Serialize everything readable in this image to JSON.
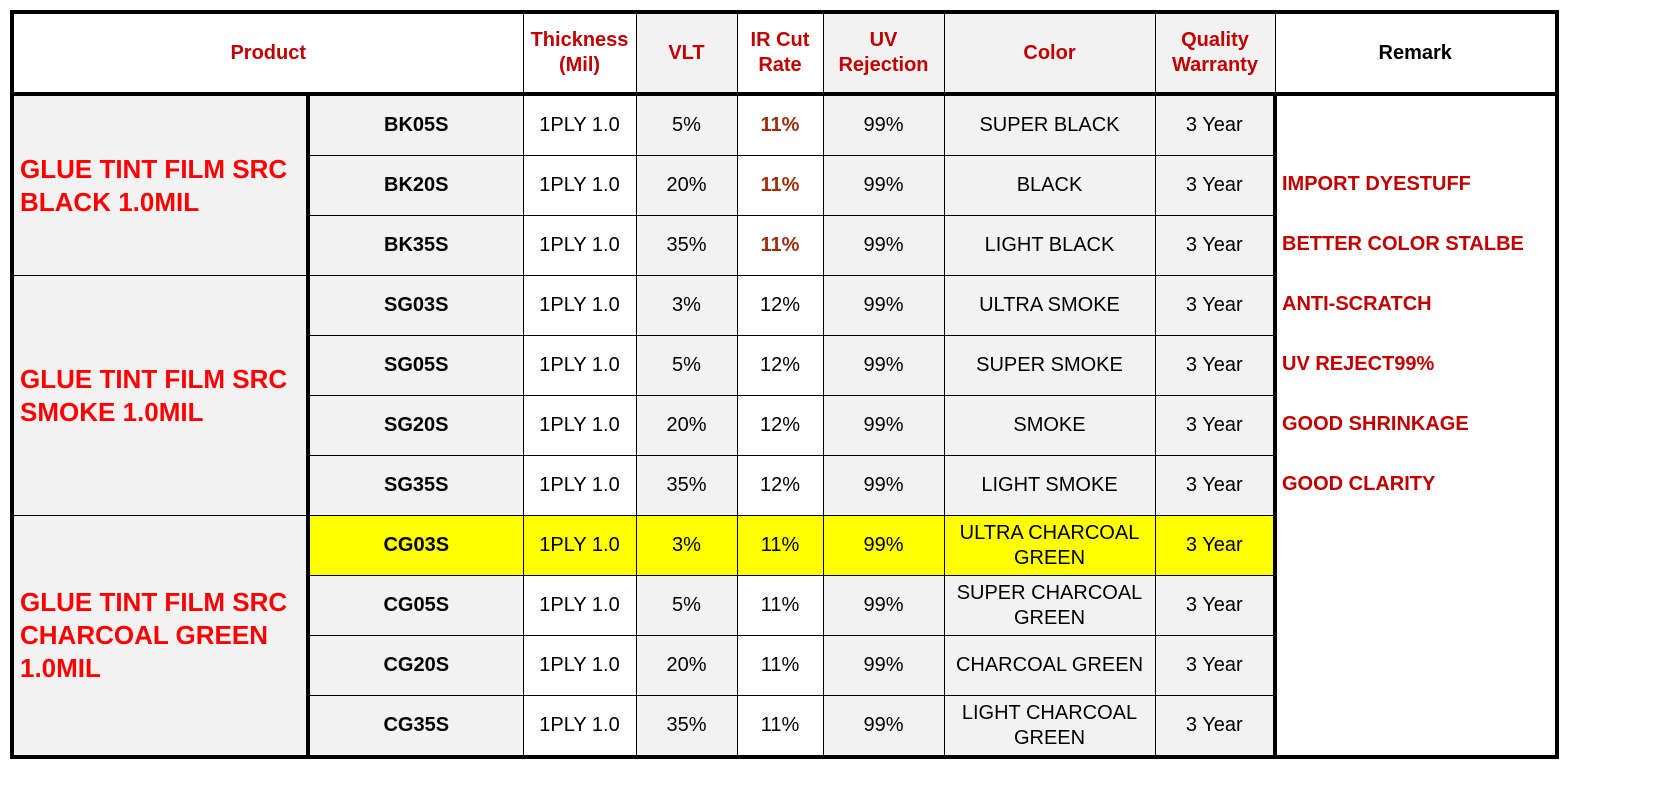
{
  "headers": {
    "product": "Product",
    "thickness": "Thickness\n(Mil)",
    "vlt": "VLT",
    "ir": "IR Cut\nRate",
    "uv": "UV\nRejection",
    "color": "Color",
    "warranty": "Quality\nWarranty",
    "remark": "Remark"
  },
  "groups": [
    {
      "name": "GLUE TINT FILM SRC BLACK 1.0MIL"
    },
    {
      "name": "GLUE TINT FILM SRC SMOKE 1.0MIL"
    },
    {
      "name": "GLUE TINT FILM SRC CHARCOAL GREEN 1.0MIL"
    }
  ],
  "rows": [
    {
      "code": "BK05S",
      "thickness": "1PLY 1.0",
      "vlt": "5%",
      "ir": "11%",
      "uv": "99%",
      "color": "SUPER BLACK",
      "warranty": "3 Year"
    },
    {
      "code": "BK20S",
      "thickness": "1PLY 1.0",
      "vlt": "20%",
      "ir": "11%",
      "uv": "99%",
      "color": "BLACK",
      "warranty": "3 Year"
    },
    {
      "code": "BK35S",
      "thickness": "1PLY 1.0",
      "vlt": "35%",
      "ir": "11%",
      "uv": "99%",
      "color": "LIGHT BLACK",
      "warranty": "3 Year"
    },
    {
      "code": "SG03S",
      "thickness": "1PLY 1.0",
      "vlt": "3%",
      "ir": "12%",
      "uv": "99%",
      "color": "ULTRA SMOKE",
      "warranty": "3 Year"
    },
    {
      "code": "SG05S",
      "thickness": "1PLY 1.0",
      "vlt": "5%",
      "ir": "12%",
      "uv": "99%",
      "color": "SUPER SMOKE",
      "warranty": "3 Year"
    },
    {
      "code": "SG20S",
      "thickness": "1PLY 1.0",
      "vlt": "20%",
      "ir": "12%",
      "uv": "99%",
      "color": "SMOKE",
      "warranty": "3 Year"
    },
    {
      "code": "SG35S",
      "thickness": "1PLY 1.0",
      "vlt": "35%",
      "ir": "12%",
      "uv": "99%",
      "color": "LIGHT SMOKE",
      "warranty": "3 Year"
    },
    {
      "code": "CG03S",
      "thickness": "1PLY 1.0",
      "vlt": "3%",
      "ir": "11%",
      "uv": "99%",
      "color": "ULTRA CHARCOAL GREEN",
      "warranty": "3 Year"
    },
    {
      "code": "CG05S",
      "thickness": "1PLY 1.0",
      "vlt": "5%",
      "ir": "11%",
      "uv": "99%",
      "color": "SUPER CHARCOAL GREEN",
      "warranty": "3 Year"
    },
    {
      "code": "CG20S",
      "thickness": "1PLY 1.0",
      "vlt": "20%",
      "ir": "11%",
      "uv": "99%",
      "color": "CHARCOAL GREEN",
      "warranty": "3 Year"
    },
    {
      "code": "CG35S",
      "thickness": "1PLY 1.0",
      "vlt": "35%",
      "ir": "11%",
      "uv": "99%",
      "color": "LIGHT CHARCOAL GREEN",
      "warranty": "3 Year"
    }
  ],
  "remarks": [
    "IMPORT DYESTUFF",
    "BETTER COLOR STALBE",
    "ANTI-SCRATCH",
    "UV REJECT99%",
    "GOOD SHRINKAGE",
    "GOOD CLARITY"
  ],
  "colors": {
    "header_text": "#c00000",
    "group_text": "#ff0000",
    "remark_text": "#c00000",
    "ir_black_group": "#9c2f0b",
    "highlight": "#ffff00",
    "cell_bg": "#f2f2f2"
  }
}
